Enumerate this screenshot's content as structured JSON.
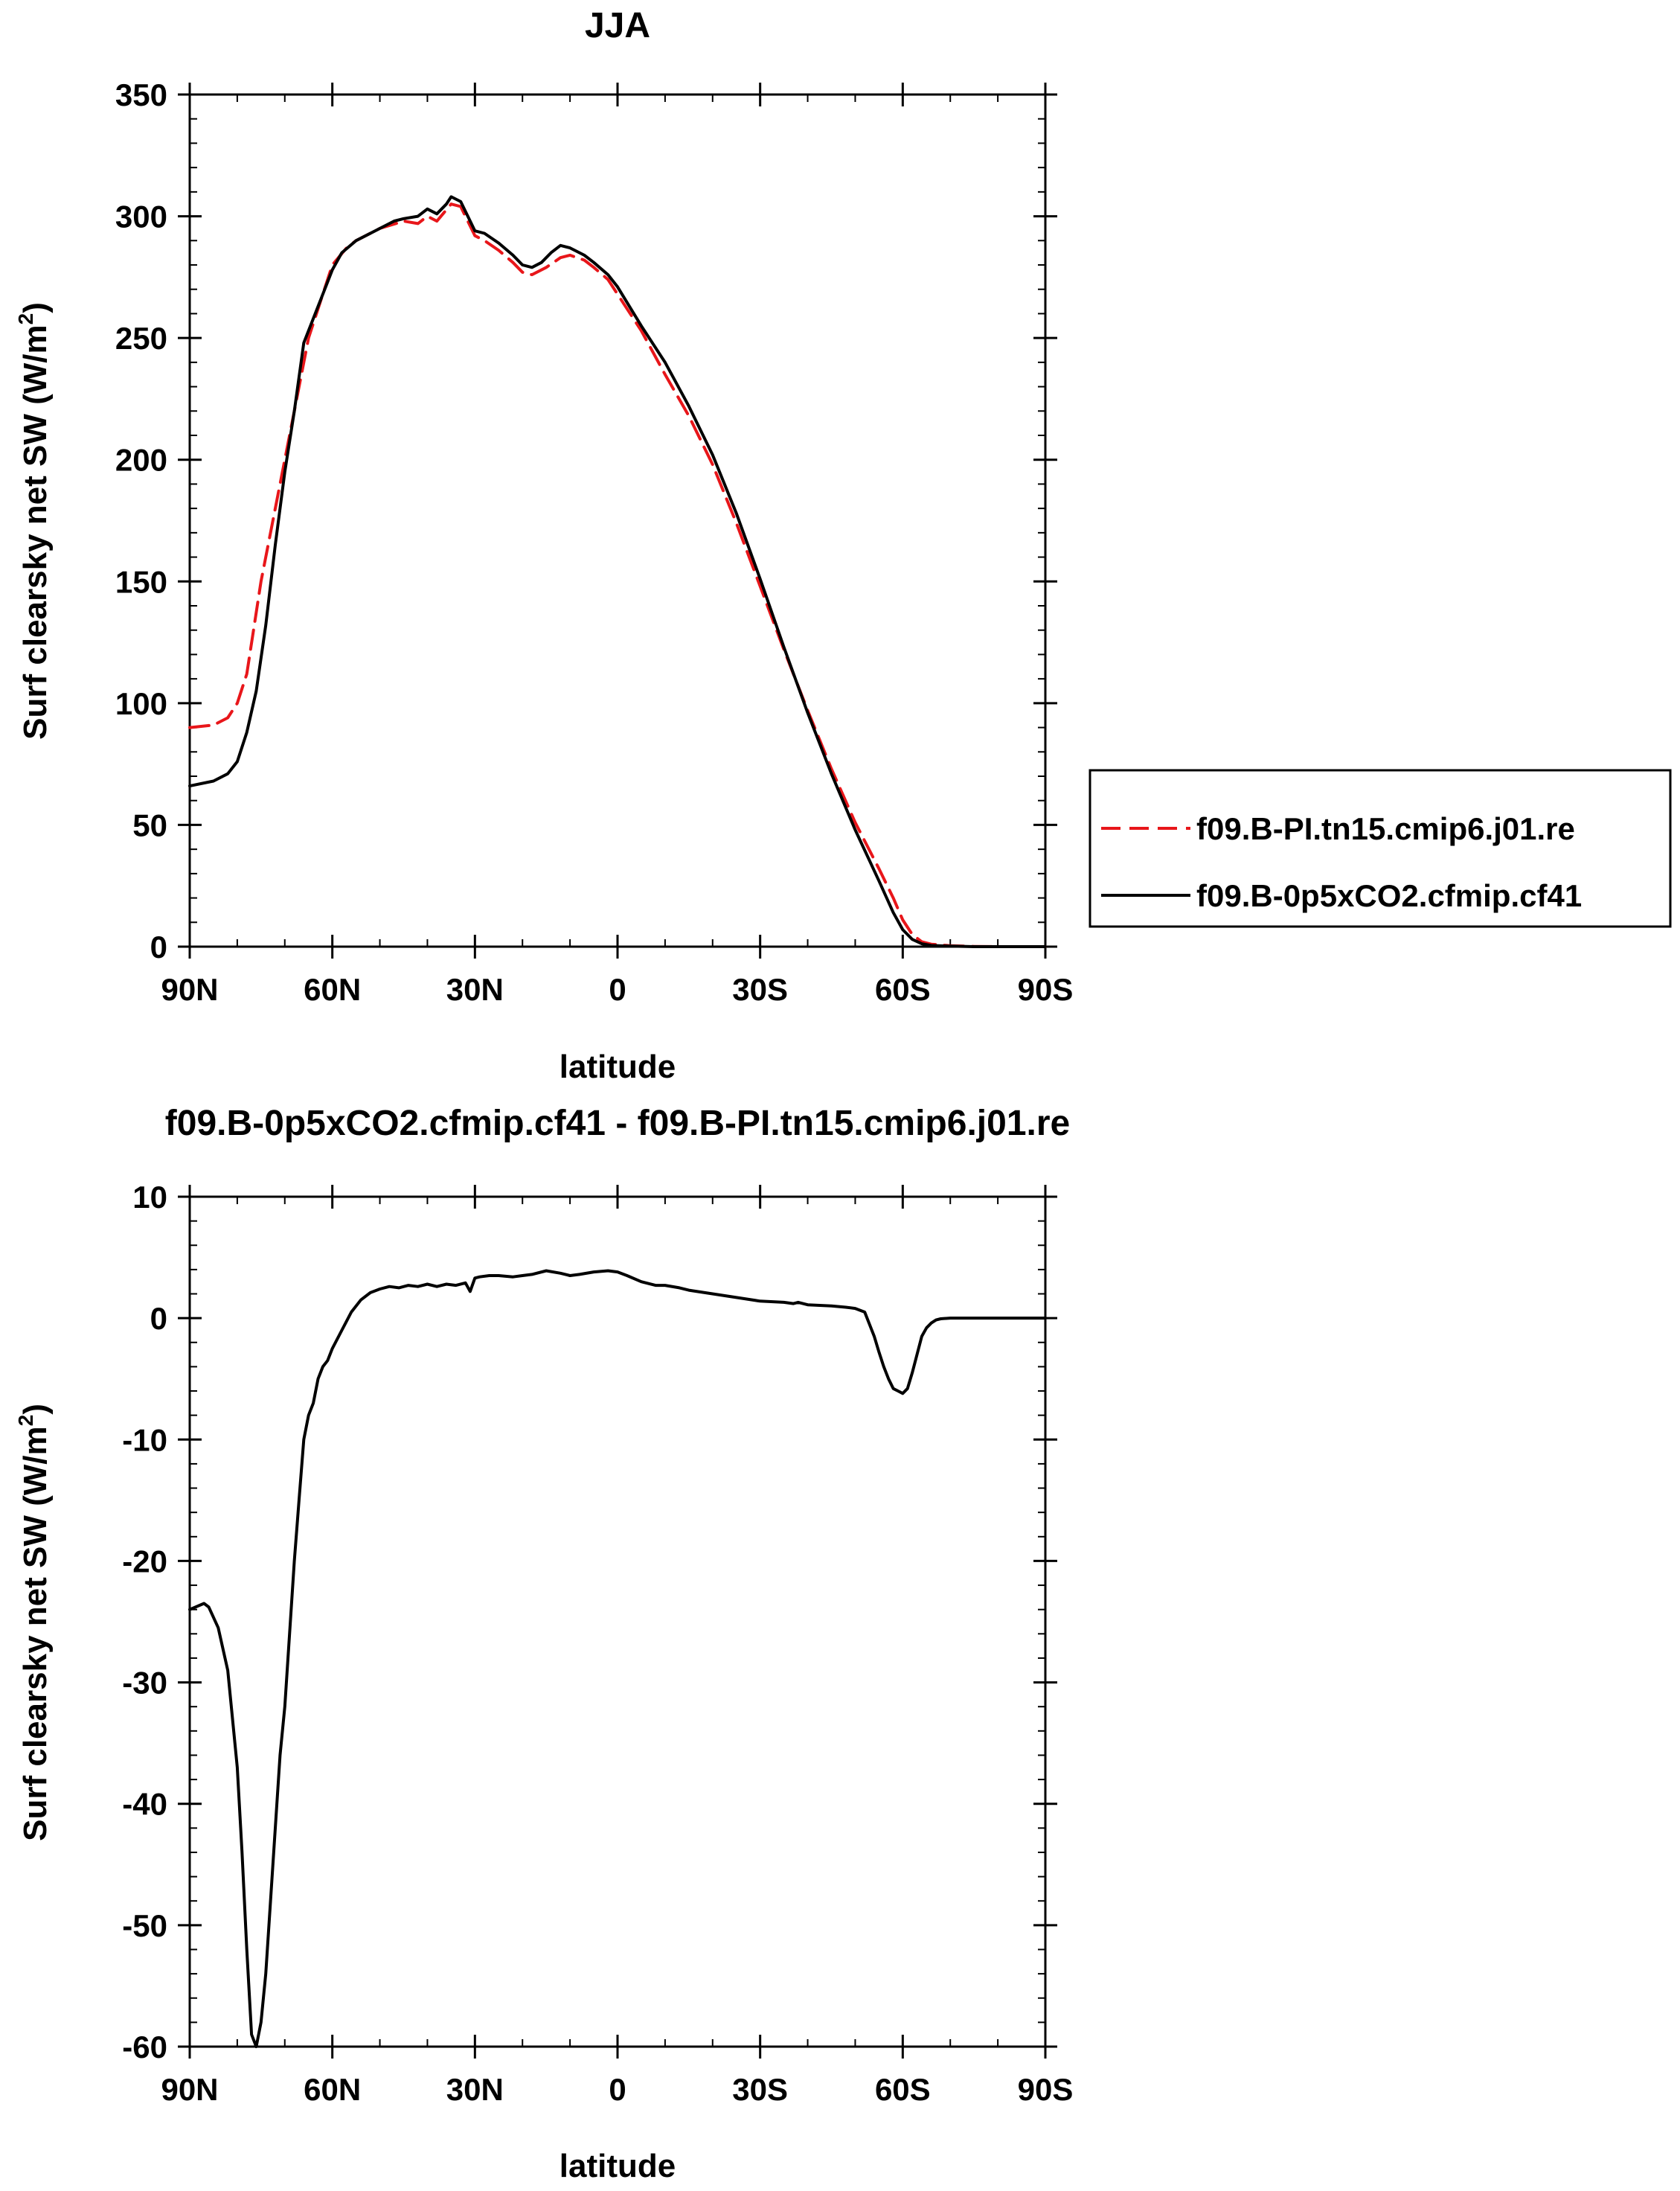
{
  "chart_data": [
    {
      "type": "line",
      "title": "JJA",
      "xlabel": "latitude",
      "ylabel": "Surf clearsky net SW (W/m",
      "ylabel_sup": "2",
      "ylabel_close": ")",
      "xlim": [
        90,
        -90
      ],
      "ylim": [
        0,
        350
      ],
      "x_ticks": [
        {
          "value": 90,
          "label": "90N"
        },
        {
          "value": 60,
          "label": "60N"
        },
        {
          "value": 30,
          "label": "30N"
        },
        {
          "value": 0,
          "label": "0"
        },
        {
          "value": -30,
          "label": "30S"
        },
        {
          "value": -60,
          "label": "60S"
        },
        {
          "value": -90,
          "label": "90S"
        }
      ],
      "y_ticks": [
        {
          "value": 0,
          "label": "0"
        },
        {
          "value": 50,
          "label": "50"
        },
        {
          "value": 100,
          "label": "100"
        },
        {
          "value": 150,
          "label": "150"
        },
        {
          "value": 200,
          "label": "200"
        },
        {
          "value": 250,
          "label": "250"
        },
        {
          "value": 300,
          "label": "300"
        },
        {
          "value": 350,
          "label": "350"
        }
      ],
      "legend_position": "right",
      "series": [
        {
          "name": "f09.B-PI.tn15.cmip6.j01.re",
          "color": "#e8161a",
          "dash": "dashed",
          "x": [
            90,
            85,
            82,
            80,
            78,
            75,
            72,
            70,
            68,
            65,
            62,
            60,
            57,
            55,
            50,
            45,
            42,
            40,
            38,
            35,
            33,
            30,
            28,
            25,
            22,
            20,
            18,
            15,
            12,
            10,
            7,
            5,
            2,
            0,
            -5,
            -10,
            -15,
            -20,
            -25,
            -30,
            -35,
            -40,
            -45,
            -50,
            -55,
            -58,
            -60,
            -62,
            -64,
            -66,
            -70,
            -75,
            -80,
            -85,
            -90
          ],
          "y": [
            90,
            91,
            94,
            100,
            112,
            150,
            180,
            200,
            220,
            250,
            268,
            280,
            287,
            290,
            295,
            298,
            297,
            300,
            298,
            305,
            304,
            292,
            290,
            286,
            281,
            277,
            276,
            279,
            283,
            284,
            282,
            279,
            274,
            268,
            253,
            235,
            218,
            198,
            174,
            148,
            122,
            97,
            73,
            51,
            32,
            20,
            11,
            5,
            2,
            1,
            0.4,
            0.1,
            0,
            0,
            0
          ]
        },
        {
          "name": "f09.B-0p5xCO2.cfmip.cf41",
          "color": "#000000",
          "dash": "solid",
          "x": [
            90,
            85,
            82,
            80,
            78,
            76,
            74,
            72,
            70,
            68,
            66,
            64,
            62,
            60,
            58,
            55,
            50,
            47,
            45,
            42,
            40,
            38,
            36,
            35,
            33,
            30,
            28,
            25,
            22,
            20,
            18,
            16,
            14,
            12,
            10,
            7,
            5,
            2,
            0,
            -5,
            -10,
            -15,
            -20,
            -25,
            -30,
            -35,
            -40,
            -45,
            -50,
            -55,
            -58,
            -60,
            -62,
            -64,
            -66,
            -70,
            -75,
            -80,
            -85,
            -90
          ],
          "y": [
            66,
            68,
            71,
            76,
            88,
            105,
            132,
            165,
            195,
            220,
            248,
            258,
            268,
            278,
            285,
            290,
            295,
            298,
            299,
            300,
            303,
            301,
            305,
            308,
            306,
            294,
            293,
            289,
            284,
            280,
            279,
            281,
            285,
            288,
            287,
            284,
            281,
            276,
            271,
            255,
            240,
            222,
            202,
            178,
            151,
            123,
            96,
            71,
            48,
            27,
            14,
            7,
            3,
            1.2,
            0.5,
            0.2,
            0,
            0,
            0,
            0
          ]
        }
      ]
    },
    {
      "type": "line",
      "title": "f09.B-0p5xCO2.cfmip.cf41 - f09.B-PI.tn15.cmip6.j01.re",
      "xlabel": "latitude",
      "ylabel": "Surf clearsky net SW (W/m",
      "ylabel_sup": "2",
      "ylabel_close": ")",
      "xlim": [
        90,
        -90
      ],
      "ylim": [
        -60,
        10
      ],
      "x_ticks": [
        {
          "value": 90,
          "label": "90N"
        },
        {
          "value": 60,
          "label": "60N"
        },
        {
          "value": 30,
          "label": "30N"
        },
        {
          "value": 0,
          "label": "0"
        },
        {
          "value": -30,
          "label": "30S"
        },
        {
          "value": -60,
          "label": "60S"
        },
        {
          "value": -90,
          "label": "90S"
        }
      ],
      "y_ticks": [
        {
          "value": -60,
          "label": "-60"
        },
        {
          "value": -50,
          "label": "-50"
        },
        {
          "value": -40,
          "label": "-40"
        },
        {
          "value": -30,
          "label": "-30"
        },
        {
          "value": -20,
          "label": "-20"
        },
        {
          "value": -10,
          "label": "-10"
        },
        {
          "value": 0,
          "label": "0"
        },
        {
          "value": 10,
          "label": "10"
        }
      ],
      "series": [
        {
          "color": "#000000",
          "dash": "solid",
          "x": [
            90,
            87,
            86,
            84,
            82,
            81,
            80,
            79,
            78,
            77,
            76,
            75,
            74,
            73,
            71,
            70,
            69,
            68,
            67,
            66,
            65,
            64,
            63,
            62,
            61,
            60,
            58,
            56,
            54,
            52,
            50,
            48,
            46,
            44,
            42,
            40,
            38,
            36,
            34,
            32,
            31,
            30,
            29,
            27,
            25,
            22,
            20,
            18,
            15,
            12,
            10,
            8,
            5,
            2,
            0,
            -2,
            -5,
            -8,
            -10,
            -13,
            -15,
            -20,
            -25,
            -30,
            -35,
            -37,
            -38,
            -40,
            -45,
            -48,
            -50,
            -52,
            -53,
            -54,
            -55,
            -56,
            -57,
            -58,
            -59,
            -60,
            -61,
            -62,
            -63,
            -64,
            -65,
            -66,
            -67,
            -68,
            -70,
            -75,
            -80,
            -85,
            -90
          ],
          "y": [
            -24,
            -23.5,
            -23.8,
            -25.5,
            -29,
            -33,
            -37,
            -44,
            -52,
            -59,
            -60,
            -58,
            -54,
            -48,
            -36,
            -32,
            -26,
            -20,
            -15,
            -10,
            -8,
            -7,
            -5,
            -4,
            -3.5,
            -2.5,
            -1,
            0.5,
            1.5,
            2.1,
            2.4,
            2.6,
            2.5,
            2.7,
            2.6,
            2.8,
            2.6,
            2.8,
            2.7,
            2.9,
            2.2,
            3.3,
            3.4,
            3.5,
            3.5,
            3.4,
            3.5,
            3.6,
            3.9,
            3.7,
            3.5,
            3.6,
            3.8,
            3.9,
            3.8,
            3.5,
            3.0,
            2.7,
            2.7,
            2.5,
            2.3,
            2.0,
            1.7,
            1.4,
            1.3,
            1.2,
            1.3,
            1.1,
            1.0,
            0.9,
            0.8,
            0.5,
            -0.5,
            -1.5,
            -2.8,
            -4.0,
            -5.0,
            -5.8,
            -6.0,
            -6.2,
            -5.8,
            -4.5,
            -3.0,
            -1.5,
            -0.8,
            -0.4,
            -0.15,
            -0.05,
            0,
            0,
            0,
            0,
            0
          ]
        }
      ]
    }
  ]
}
